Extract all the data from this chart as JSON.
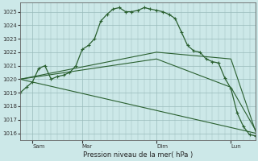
{
  "bg_color": "#cce8e8",
  "grid_color": "#99bbbb",
  "line_color": "#2a6030",
  "xlabel": "Pression niveau de la mer( hPa )",
  "ylim": [
    1015.5,
    1025.7
  ],
  "yticks": [
    1016,
    1017,
    1018,
    1019,
    1020,
    1021,
    1022,
    1023,
    1024,
    1025
  ],
  "xtick_labels": [
    "Sam",
    "Mar",
    "Dim",
    "Lun"
  ],
  "xtick_positions": [
    2,
    10,
    22,
    34
  ],
  "x_total_min": 0,
  "x_total_max": 38,
  "lines": [
    {
      "x": [
        0,
        1,
        2,
        3,
        4,
        5,
        6,
        7,
        8,
        9,
        10,
        11,
        12,
        13,
        14,
        15,
        16,
        17,
        18,
        19,
        20,
        21,
        22,
        23,
        24,
        25,
        26,
        27,
        28,
        29,
        30,
        31,
        32,
        33,
        34,
        35,
        36,
        37,
        38
      ],
      "y": [
        1019.0,
        1019.4,
        1019.8,
        1020.8,
        1021.0,
        1020.0,
        1020.2,
        1020.3,
        1020.5,
        1021.0,
        1022.2,
        1022.5,
        1023.0,
        1024.3,
        1024.8,
        1025.2,
        1025.3,
        1025.0,
        1025.0,
        1025.1,
        1025.3,
        1025.2,
        1025.1,
        1025.0,
        1024.8,
        1024.5,
        1023.5,
        1022.5,
        1022.1,
        1022.0,
        1021.5,
        1021.3,
        1021.2,
        1020.1,
        1019.3,
        1017.5,
        1016.5,
        1015.9,
        1015.8
      ],
      "show_markers": true
    },
    {
      "x": [
        0,
        38
      ],
      "y": [
        1020.0,
        1016.0
      ],
      "show_markers": false
    },
    {
      "x": [
        0,
        22,
        34,
        38
      ],
      "y": [
        1020.0,
        1021.5,
        1019.4,
        1016.2
      ],
      "show_markers": false
    },
    {
      "x": [
        0,
        22,
        34,
        38
      ],
      "y": [
        1020.0,
        1022.0,
        1021.5,
        1016.1
      ],
      "show_markers": false
    }
  ]
}
